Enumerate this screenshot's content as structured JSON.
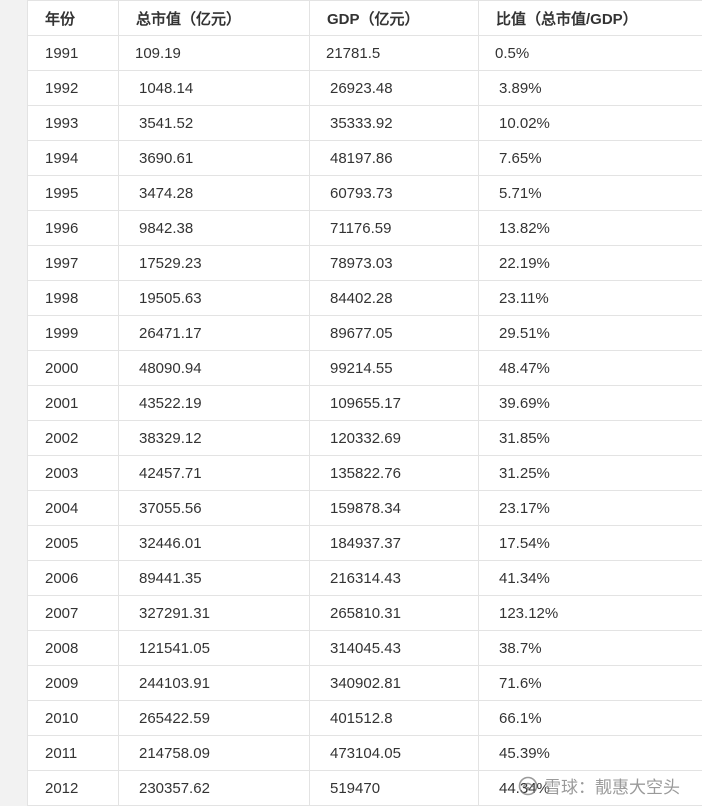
{
  "table": {
    "headers": [
      "年份",
      "总市值（亿元）",
      "GDP（亿元）",
      "比值（总市值/GDP）"
    ],
    "rows": [
      [
        "1991",
        "109.19",
        "21781.5",
        "0.5%"
      ],
      [
        "1992",
        "1048.14",
        "26923.48",
        "3.89%"
      ],
      [
        "1993",
        "3541.52",
        "35333.92",
        "10.02%"
      ],
      [
        "1994",
        "3690.61",
        "48197.86",
        "7.65%"
      ],
      [
        "1995",
        "3474.28",
        "60793.73",
        "5.71%"
      ],
      [
        "1996",
        "9842.38",
        "71176.59",
        "13.82%"
      ],
      [
        "1997",
        "17529.23",
        "78973.03",
        "22.19%"
      ],
      [
        "1998",
        "19505.63",
        "84402.28",
        "23.11%"
      ],
      [
        "1999",
        "26471.17",
        "89677.05",
        "29.51%"
      ],
      [
        "2000",
        "48090.94",
        "99214.55",
        "48.47%"
      ],
      [
        "2001",
        "43522.19",
        "109655.17",
        "39.69%"
      ],
      [
        "2002",
        "38329.12",
        "120332.69",
        "31.85%"
      ],
      [
        "2003",
        "42457.71",
        "135822.76",
        "31.25%"
      ],
      [
        "2004",
        "37055.56",
        "159878.34",
        "23.17%"
      ],
      [
        "2005",
        "32446.01",
        "184937.37",
        "17.54%"
      ],
      [
        "2006",
        "89441.35",
        "216314.43",
        "41.34%"
      ],
      [
        "2007",
        "327291.31",
        "265810.31",
        "123.12%"
      ],
      [
        "2008",
        "121541.05",
        "314045.43",
        "38.7%"
      ],
      [
        "2009",
        "244103.91",
        "340902.81",
        "71.6%"
      ],
      [
        "2010",
        "265422.59",
        "401512.8",
        "66.1%"
      ],
      [
        "2011",
        "214758.09",
        "473104.05",
        "45.39%"
      ],
      [
        "2012",
        "230357.62",
        "519470",
        "44.34%"
      ]
    ]
  },
  "watermark": {
    "text": "雪球：靓惠大空头",
    "icon": "snowball-logo-icon"
  }
}
